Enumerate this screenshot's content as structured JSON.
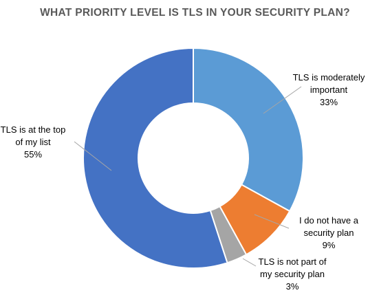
{
  "chart_data": {
    "type": "pie",
    "subtype": "donut",
    "title": "WHAT PRIORITY LEVEL IS TLS IN YOUR SECURITY PLAN?",
    "slices": [
      {
        "label": "TLS is moderately important",
        "label_lines": [
          "TLS is moderately",
          "important"
        ],
        "value": 33,
        "percent_label": "33%",
        "color": "#5b9bd5"
      },
      {
        "label": "I do not have a security plan",
        "label_lines": [
          "I do not have a",
          "security plan"
        ],
        "value": 9,
        "percent_label": "9%",
        "color": "#ed7d31"
      },
      {
        "label": "TLS is not part of my security plan",
        "label_lines": [
          "TLS is not part of",
          "my security plan"
        ],
        "value": 3,
        "percent_label": "3%",
        "color": "#a5a5a5"
      },
      {
        "label": "TLS is at the top of my list",
        "label_lines": [
          "TLS is at the top",
          "of my list"
        ],
        "value": 55,
        "percent_label": "55%",
        "color": "#4472c4"
      }
    ],
    "legend": "none"
  }
}
